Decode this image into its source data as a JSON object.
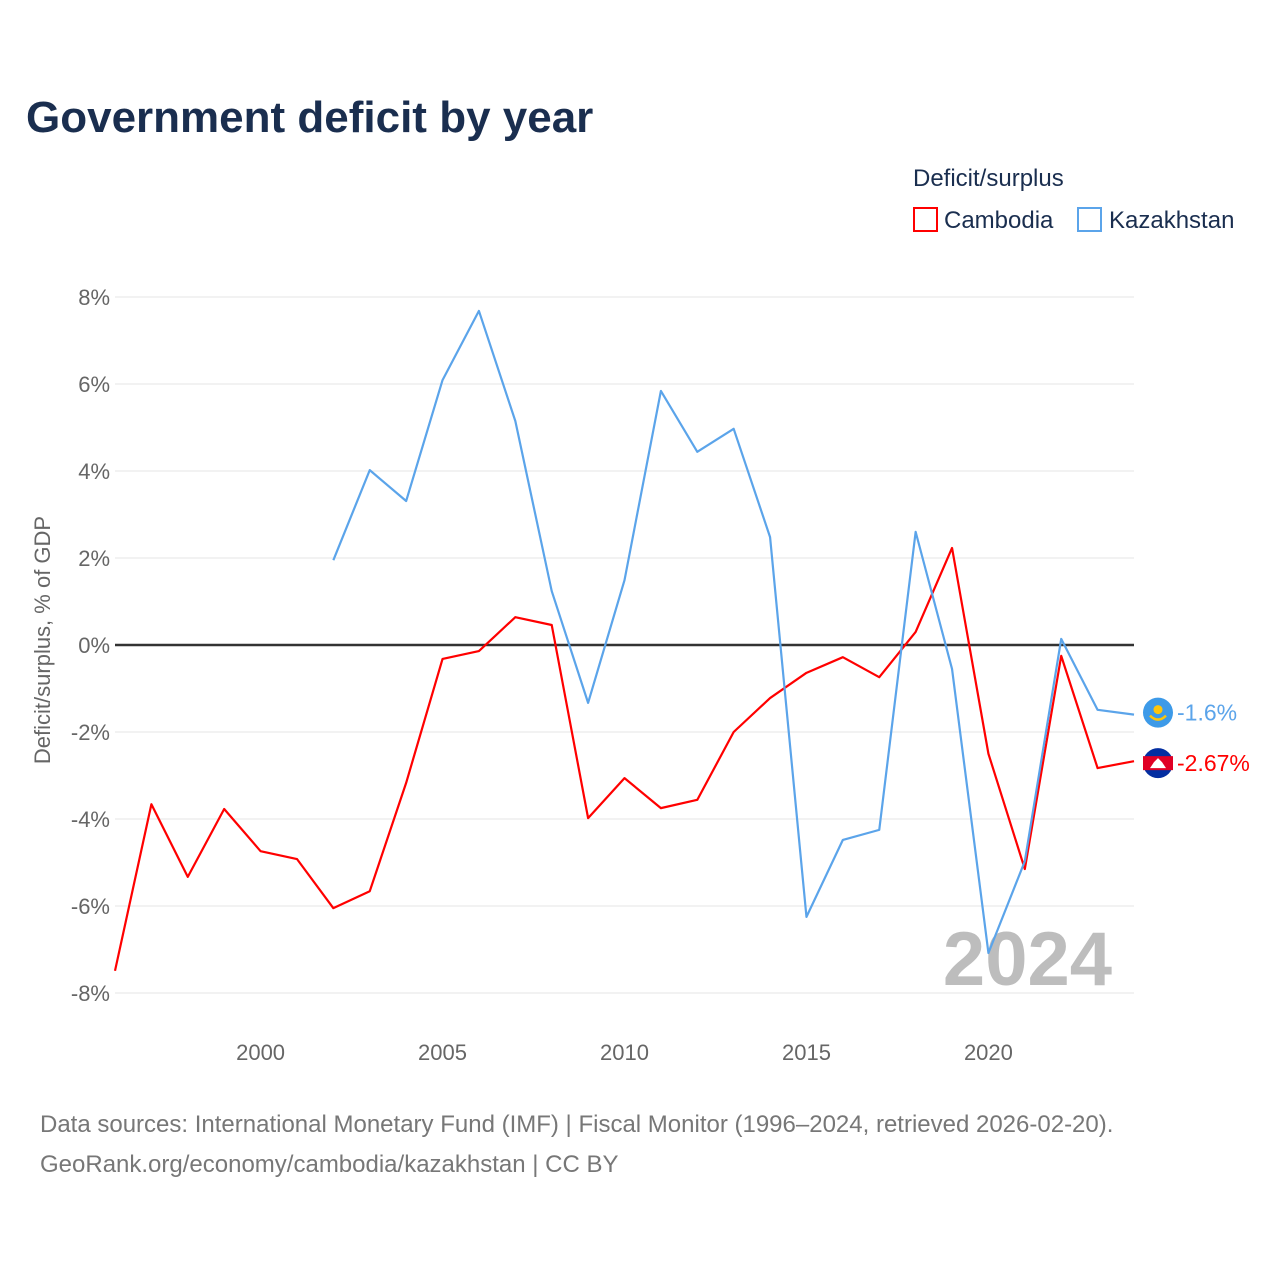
{
  "chart_data": {
    "type": "line",
    "title": "Government deficit by year",
    "xlabel": "",
    "ylabel": "Deficit/surplus, % of GDP",
    "xlim": [
      1996,
      2024
    ],
    "ylim": [
      -8.8,
      8.3
    ],
    "yticks": [
      8,
      6,
      4,
      2,
      0,
      -2,
      -4,
      -6,
      -8
    ],
    "ytick_labels": [
      "8%",
      "6%",
      "4%",
      "2%",
      "0%",
      "-2%",
      "-4%",
      "-6%",
      "-8%"
    ],
    "xticks": [
      2000,
      2005,
      2010,
      2015,
      2020
    ],
    "xtick_labels": [
      "2000",
      "2005",
      "2010",
      "2015",
      "2020"
    ],
    "grid": true,
    "legend_title": "Deficit/surplus",
    "legend_position": "top-right",
    "watermark_year": "2024",
    "series": [
      {
        "name": "Cambodia",
        "color": "#ff0000",
        "end_label": "-2.67%",
        "flag": "cambodia-flag",
        "x": [
          1996,
          1997,
          1998,
          1999,
          2000,
          2001,
          2002,
          2003,
          2004,
          2005,
          2006,
          2007,
          2008,
          2009,
          2010,
          2011,
          2012,
          2013,
          2014,
          2015,
          2016,
          2017,
          2018,
          2019,
          2020,
          2021,
          2022,
          2023,
          2024
        ],
        "values": [
          -7.49,
          -3.66,
          -5.33,
          -3.77,
          -4.74,
          -4.92,
          -6.05,
          -5.66,
          -3.17,
          -0.32,
          -0.14,
          0.64,
          0.46,
          -3.98,
          -3.06,
          -3.75,
          -3.56,
          -2.0,
          -1.22,
          -0.64,
          -0.28,
          -0.74,
          0.3,
          2.23,
          -2.5,
          -5.15,
          -0.25,
          -2.83,
          -2.67
        ]
      },
      {
        "name": "Kazakhstan",
        "color": "#5ba4ea",
        "end_label": "-1.6%",
        "flag": "kazakhstan-flag",
        "x": [
          2002,
          2003,
          2004,
          2005,
          2006,
          2007,
          2008,
          2009,
          2010,
          2011,
          2012,
          2013,
          2014,
          2015,
          2016,
          2017,
          2018,
          2019,
          2020,
          2021,
          2022,
          2023,
          2024
        ],
        "values": [
          1.95,
          4.02,
          3.31,
          6.09,
          7.68,
          5.15,
          1.24,
          -1.33,
          1.49,
          5.84,
          4.44,
          4.97,
          2.48,
          -6.25,
          -4.48,
          -4.25,
          2.6,
          -0.55,
          -7.08,
          -4.97,
          0.14,
          -1.49,
          -1.6
        ]
      }
    ],
    "source_line1": "Data sources: International Monetary Fund (IMF) | Fiscal Monitor (1996–2024, retrieved 2026-02-20).",
    "source_line2": "GeoRank.org/economy/cambodia/kazakhstan | CC BY"
  }
}
